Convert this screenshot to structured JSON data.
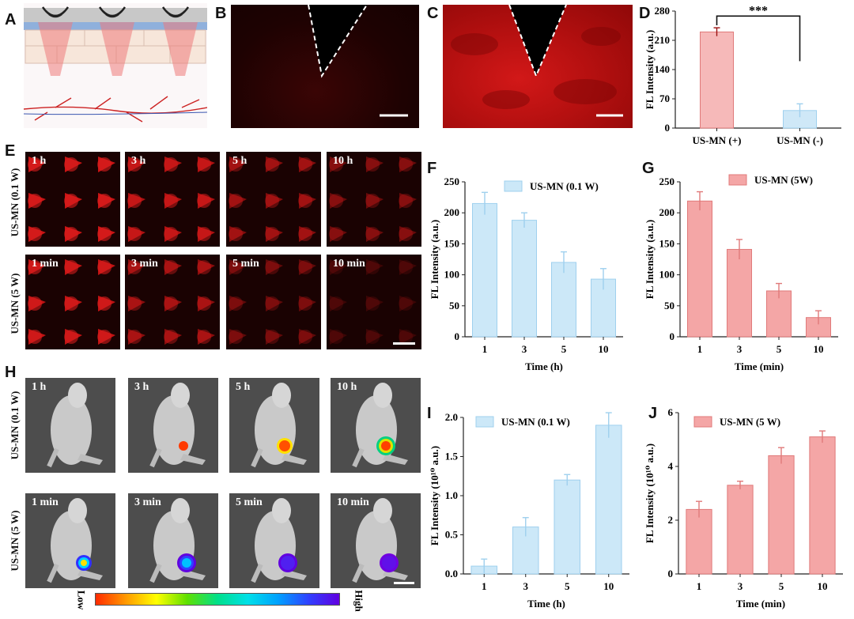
{
  "panel_labels": {
    "A": "A",
    "B": "B",
    "C": "C",
    "D": "D",
    "E": "E",
    "F": "F",
    "G": "G",
    "H": "H",
    "I": "I",
    "J": "J"
  },
  "groups": {
    "low": "US-MN (0.1 W)",
    "high": "US-MN (5 W)"
  },
  "e_times_low": [
    "1 h",
    "3 h",
    "5 h",
    "10 h"
  ],
  "e_times_high": [
    "1 min",
    "3 min",
    "5 min",
    "10 min"
  ],
  "h_times_low": [
    "1 h",
    "3 h",
    "5 h",
    "10 h"
  ],
  "h_times_high": [
    "1 min",
    "3 min",
    "5 min",
    "10 min"
  ],
  "colorbar": {
    "low": "Low",
    "high": "High"
  },
  "colors": {
    "pink": "#f4a6a6",
    "pink_edge": "#e07a7a",
    "blue": "#cce8f8",
    "blue_edge": "#9fd0ee",
    "red_tissue": "#b81010"
  },
  "chart_data": [
    {
      "id": "D",
      "type": "bar",
      "categories": [
        "US-MN (+)",
        "US-MN (-)"
      ],
      "values": [
        230,
        42
      ],
      "errors": [
        10,
        16
      ],
      "bar_colors": [
        "#f6b9b9",
        "#cfe8f7"
      ],
      "ylabel": "FL Intensity (a.u.)",
      "xlabel": "",
      "ylim": [
        0,
        280
      ],
      "yticks": [
        0,
        70,
        140,
        210,
        280
      ],
      "significance": "***"
    },
    {
      "id": "F",
      "type": "bar",
      "categories": [
        "1",
        "3",
        "5",
        "10"
      ],
      "values": [
        215,
        188,
        120,
        93
      ],
      "errors": [
        18,
        12,
        17,
        17
      ],
      "ylabel": "FL Intensity (a.u.)",
      "xlabel": "Time (h)",
      "ylim": [
        0,
        250
      ],
      "yticks": [
        0,
        50,
        100,
        150,
        200,
        250
      ],
      "legend": "US-MN (0.1 W)",
      "color": "blue"
    },
    {
      "id": "G",
      "type": "bar",
      "categories": [
        "1",
        "3",
        "5",
        "10"
      ],
      "values": [
        219,
        141,
        74,
        31
      ],
      "errors": [
        15,
        16,
        12,
        11
      ],
      "ylabel": "FL Intensity (a.u.)",
      "xlabel": "Time (min)",
      "ylim": [
        0,
        250
      ],
      "yticks": [
        0,
        50,
        100,
        150,
        200,
        250
      ],
      "legend": "US-MN (5W)",
      "color": "pink"
    },
    {
      "id": "I",
      "type": "bar",
      "categories": [
        "1",
        "3",
        "5",
        "10"
      ],
      "values": [
        0.1,
        0.6,
        1.2,
        1.9
      ],
      "errors": [
        0.09,
        0.12,
        0.07,
        0.16
      ],
      "ylabel": "FL Intensity (10¹⁰ a.u.)",
      "xlabel": "Time (h)",
      "ylim": [
        0,
        2.0
      ],
      "yticks": [
        0.0,
        0.5,
        1.0,
        1.5,
        2.0
      ],
      "ytick_labels": [
        "0.0",
        "0.5",
        "1.0",
        "1.5",
        "2.0"
      ],
      "legend": "US-MN (0.1 W)",
      "color": "blue"
    },
    {
      "id": "J",
      "type": "bar",
      "categories": [
        "1",
        "3",
        "5",
        "10"
      ],
      "values": [
        2.4,
        3.3,
        4.4,
        5.1
      ],
      "errors": [
        0.3,
        0.15,
        0.3,
        0.22
      ],
      "ylabel": "FL Intensity (10¹⁰ a.u.)",
      "xlabel": "Time (min)",
      "ylim": [
        0,
        6
      ],
      "yticks": [
        0,
        2,
        4,
        6
      ],
      "legend": "US-MN (5 W)",
      "color": "pink"
    }
  ]
}
